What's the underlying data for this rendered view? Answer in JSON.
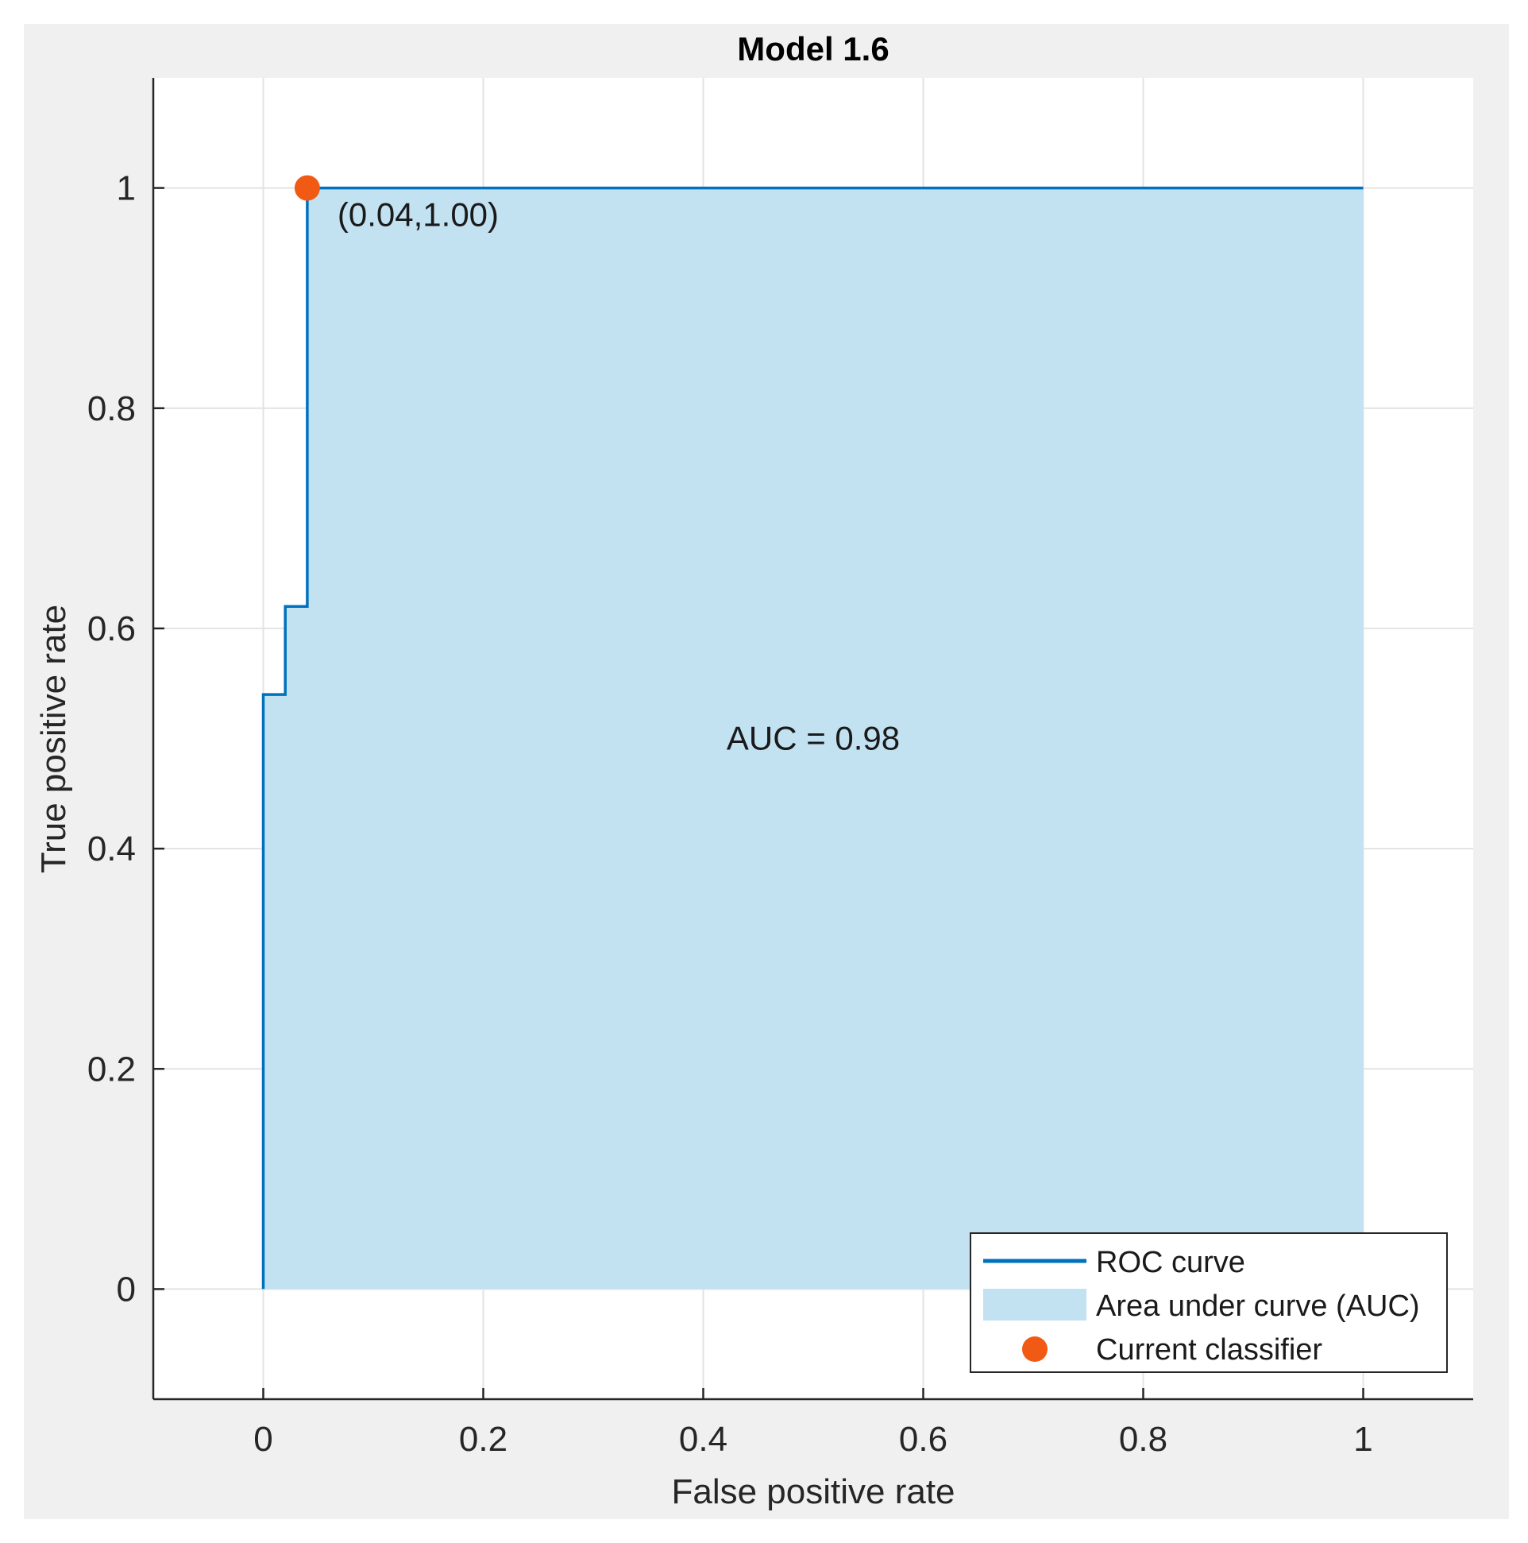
{
  "chart_data": {
    "type": "line",
    "title": "Model 1.6",
    "xlabel": "False positive rate",
    "ylabel": "True positive rate",
    "xlim": [
      -0.1,
      1.1
    ],
    "ylim": [
      -0.1,
      1.1
    ],
    "x_ticks": [
      0,
      0.2,
      0.4,
      0.6,
      0.8,
      1
    ],
    "y_ticks": [
      0,
      0.2,
      0.4,
      0.6,
      0.8,
      1
    ],
    "x_tick_labels": [
      "0",
      "0.2",
      "0.4",
      "0.6",
      "0.8",
      "1"
    ],
    "y_tick_labels": [
      "0",
      "0.2",
      "0.4",
      "0.6",
      "0.8",
      "1"
    ],
    "grid": true,
    "legend_position": "bottom-right",
    "series": [
      {
        "name": "ROC curve",
        "x": [
          0,
          0,
          0.02,
          0.02,
          0.04,
          0.04,
          1
        ],
        "y": [
          0,
          0.54,
          0.54,
          0.62,
          0.62,
          1,
          1
        ]
      }
    ],
    "area_label": "Area under curve (AUC)",
    "current_classifier": {
      "name": "Current classifier",
      "x": 0.04,
      "y": 1.0,
      "label": "(0.04,1.00)"
    },
    "annotation": "AUC = 0.98",
    "colors": {
      "curve": "#0072bd",
      "area": "#c2e2f2",
      "point": "#f05a14",
      "figure_background": "#f0f0f0",
      "grid": "#e3e3e3"
    }
  }
}
